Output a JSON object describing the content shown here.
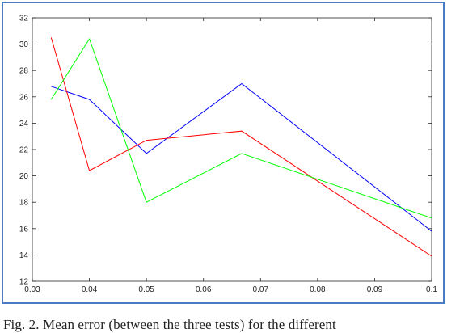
{
  "caption": "Fig. 2.   Mean error (between the three tests) for the different",
  "chart_data": {
    "type": "line",
    "title": "",
    "xlabel": "",
    "ylabel": "",
    "xlim": [
      0.03,
      0.1
    ],
    "ylim": [
      12,
      32
    ],
    "xticks": [
      "0.03",
      "0.04",
      "0.05",
      "0.06",
      "0.07",
      "0.08",
      "0.09",
      "0.1"
    ],
    "yticks": [
      "12",
      "14",
      "16",
      "18",
      "20",
      "22",
      "24",
      "26",
      "28",
      "30",
      "32"
    ],
    "grid": false,
    "series": [
      {
        "color": "#0000ff",
        "x": [
          0.0333,
          0.04,
          0.05,
          0.0667,
          0.1
        ],
        "y": [
          26.8,
          25.8,
          21.7,
          27.0,
          15.8
        ]
      },
      {
        "color": "#ff0000",
        "x": [
          0.0333,
          0.04,
          0.05,
          0.0667,
          0.1
        ],
        "y": [
          30.5,
          20.4,
          22.7,
          23.4,
          13.9
        ]
      },
      {
        "color": "#00ff00",
        "x": [
          0.0333,
          0.04,
          0.05,
          0.0667,
          0.1
        ],
        "y": [
          25.8,
          30.4,
          18.0,
          21.7,
          16.8
        ]
      }
    ]
  }
}
